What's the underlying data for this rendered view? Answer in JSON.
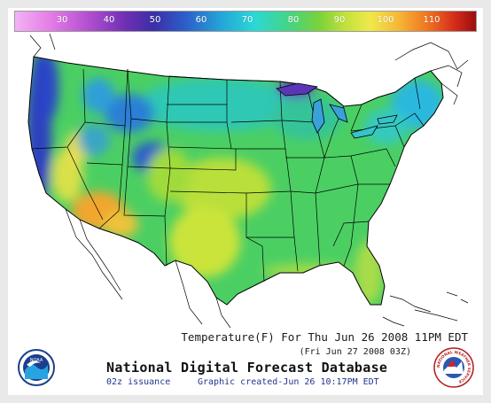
{
  "scale": {
    "ticks": [
      "30",
      "40",
      "50",
      "60",
      "70",
      "80",
      "90",
      "100",
      "110"
    ]
  },
  "caption": {
    "main": "Temperature(F) For Thu Jun 26 2008 11PM EDT",
    "utc": "(Fri Jun 27 2008 03Z)"
  },
  "footer": {
    "title": "National Digital Forecast Database",
    "issuance": "02z issuance",
    "created": "Graphic created-Jun 26 10:17PM EDT"
  },
  "logos": {
    "noaa_text": "NOAA",
    "nws_text": "NATIONAL WEATHER SERVICE"
  },
  "colors": {
    "cold_coast": "#2d3fbf",
    "cool": "#24a7d8",
    "mild": "#47d47e",
    "warm": "#b8df3a",
    "hot": "#f2a62f",
    "water_outline": "#000000"
  }
}
